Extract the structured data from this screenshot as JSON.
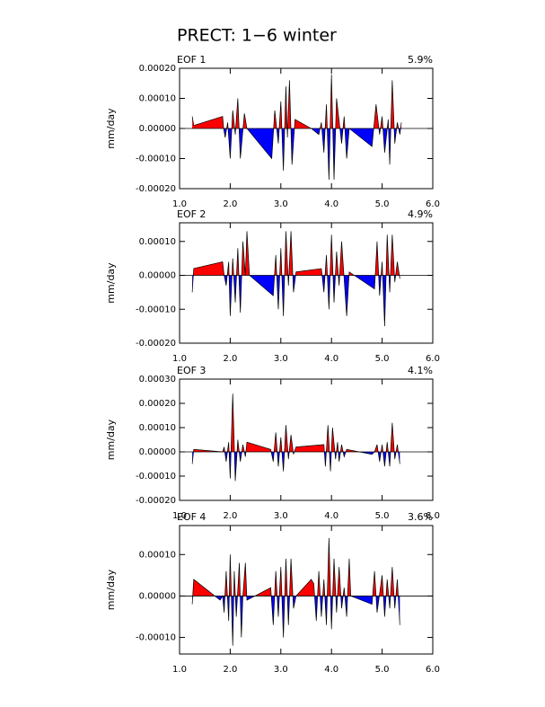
{
  "title": "PRECT: 1−6 winter",
  "chart_data": [
    {
      "type": "area",
      "subtitle": "EOF 1",
      "annotation": "5.9%",
      "ylabel": "mm/day",
      "color": "#000000",
      "above_color": "#ff0000",
      "below_color": "#0000ff",
      "xlim": [
        1,
        6
      ],
      "xticks": [
        {
          "value": 1,
          "label": "1.0"
        },
        {
          "value": 2,
          "label": "2.0"
        },
        {
          "value": 3,
          "label": "3.0"
        },
        {
          "value": 4,
          "label": "4.0"
        },
        {
          "value": 5,
          "label": "5.0"
        },
        {
          "value": 6,
          "label": "6.0"
        }
      ],
      "ylim": [
        -0.0002,
        0.0002
      ],
      "yticks": [
        {
          "value": -0.0002,
          "label": "-0.00020"
        },
        {
          "value": -0.0001,
          "label": "-0.00010"
        },
        {
          "value": 0,
          "label": "0.00000"
        },
        {
          "value": 0.0001,
          "label": "0.00010"
        },
        {
          "value": 0.0002,
          "label": "0.00020"
        }
      ],
      "x": [
        1.25,
        1.28,
        1.85,
        1.87,
        1.9,
        1.95,
        2.0,
        2.05,
        2.1,
        2.15,
        2.2,
        2.28,
        2.33,
        2.82,
        2.88,
        2.95,
        3.0,
        3.05,
        3.1,
        3.13,
        3.17,
        3.22,
        3.28,
        3.6,
        3.75,
        3.8,
        3.85,
        3.9,
        3.95,
        4.0,
        4.05,
        4.1,
        4.2,
        4.25,
        4.3,
        4.35,
        4.8,
        4.88,
        4.95,
        5.0,
        5.05,
        5.12,
        5.15,
        5.2,
        5.25,
        5.3,
        5.35,
        5.38
      ],
      "values": [
        4e-05,
        1e-05,
        4e-05,
        0,
        -3e-05,
        2e-05,
        -0.0001,
        6e-05,
        -2e-05,
        0.0001,
        -0.0001,
        5e-05,
        0,
        -0.0001,
        6e-05,
        -5e-05,
        9e-05,
        -0.00014,
        0.00014,
        -3e-05,
        0.00016,
        -0.00012,
        3e-05,
        0,
        -2e-05,
        2e-05,
        -8e-05,
        8e-05,
        -0.00017,
        0.00018,
        -0.00017,
        0.0001,
        -5e-05,
        4e-05,
        -0.0001,
        0,
        -6e-05,
        8e-05,
        -2e-05,
        4e-05,
        -8e-05,
        3e-05,
        -0.00012,
        0.00016,
        -5e-05,
        2e-05,
        -2e-05,
        2e-05
      ]
    },
    {
      "type": "area",
      "subtitle": "EOF 2",
      "annotation": "4.9%",
      "ylabel": "mm/day",
      "color": "#000000",
      "above_color": "#ff0000",
      "below_color": "#0000ff",
      "xlim": [
        1,
        6
      ],
      "xticks": [
        {
          "value": 1,
          "label": "1.0"
        },
        {
          "value": 2,
          "label": "2.0"
        },
        {
          "value": 3,
          "label": "3.0"
        },
        {
          "value": 4,
          "label": "4.0"
        },
        {
          "value": 5,
          "label": "5.0"
        },
        {
          "value": 6,
          "label": "6.0"
        }
      ],
      "ylim": [
        -0.0002,
        0.000155
      ],
      "yticks": [
        {
          "value": -0.0002,
          "label": "-0.00020"
        },
        {
          "value": -0.0001,
          "label": "-0.00010"
        },
        {
          "value": 0,
          "label": "0.00000"
        },
        {
          "value": 0.0001,
          "label": "0.00010"
        }
      ],
      "x": [
        1.25,
        1.28,
        1.85,
        1.88,
        1.92,
        1.97,
        2.0,
        2.05,
        2.1,
        2.15,
        2.2,
        2.25,
        2.3,
        2.33,
        2.38,
        2.85,
        2.9,
        2.95,
        3.0,
        3.05,
        3.1,
        3.15,
        3.2,
        3.25,
        3.3,
        3.8,
        3.85,
        3.9,
        3.95,
        4.0,
        4.05,
        4.1,
        4.15,
        4.2,
        4.3,
        4.35,
        4.85,
        4.9,
        4.95,
        5.0,
        5.05,
        5.1,
        5.15,
        5.2,
        5.25,
        5.3,
        5.35
      ],
      "values": [
        -5e-05,
        2e-05,
        4e-05,
        0,
        -3e-05,
        4e-05,
        -0.00012,
        5e-05,
        -8e-05,
        8e-05,
        -0.00011,
        0.0001,
        0,
        0.00013,
        0,
        -6e-05,
        6e-05,
        -0.0001,
        8e-05,
        -0.00012,
        0.00013,
        -3e-05,
        0.00013,
        -5e-05,
        1e-05,
        2e-05,
        -5e-05,
        6e-05,
        -0.0001,
        0.00012,
        -8e-05,
        7e-05,
        -3e-05,
        0.0001,
        -0.00012,
        1e-05,
        -4e-05,
        0.0001,
        -6e-05,
        4e-05,
        -0.00015,
        0.00012,
        -5e-05,
        0.00012,
        -2e-05,
        4e-05,
        -1e-05
      ]
    },
    {
      "type": "area",
      "subtitle": "EOF 3",
      "annotation": "4.1%",
      "ylabel": "mm/day",
      "color": "#000000",
      "above_color": "#ff0000",
      "below_color": "#0000ff",
      "xlim": [
        1,
        6
      ],
      "xticks": [
        {
          "value": 1,
          "label": "1.0"
        },
        {
          "value": 2,
          "label": "2.0"
        },
        {
          "value": 3,
          "label": "3.0"
        },
        {
          "value": 4,
          "label": "4.0"
        },
        {
          "value": 5,
          "label": "5.0"
        },
        {
          "value": 6,
          "label": "6.0"
        }
      ],
      "ylim": [
        -0.0002,
        0.0003
      ],
      "yticks": [
        {
          "value": -0.0002,
          "label": "-0.00020"
        },
        {
          "value": -0.0001,
          "label": "-0.00010"
        },
        {
          "value": 0,
          "label": "0.00000"
        },
        {
          "value": 0.0001,
          "label": "0.00010"
        },
        {
          "value": 0.0002,
          "label": "0.00020"
        },
        {
          "value": 0.0003,
          "label": "0.00030"
        }
      ],
      "x": [
        1.25,
        1.28,
        1.85,
        1.88,
        1.92,
        1.97,
        2.0,
        2.05,
        2.1,
        2.15,
        2.2,
        2.25,
        2.3,
        2.33,
        2.8,
        2.85,
        2.9,
        2.95,
        3.0,
        3.05,
        3.1,
        3.15,
        3.2,
        3.25,
        3.3,
        3.85,
        3.88,
        3.93,
        3.98,
        4.02,
        4.08,
        4.12,
        4.15,
        4.2,
        4.25,
        4.3,
        4.8,
        4.85,
        4.9,
        4.95,
        5.0,
        5.05,
        5.1,
        5.15,
        5.2,
        5.25,
        5.3,
        5.35
      ],
      "values": [
        -5e-05,
        1e-05,
        0,
        2e-05,
        -4e-05,
        4e-05,
        -0.00011,
        0.00024,
        -0.00012,
        5e-05,
        -4e-05,
        3e-05,
        -2e-05,
        4e-05,
        1e-05,
        -4e-05,
        8e-05,
        -6e-05,
        6e-05,
        -8e-05,
        0.00011,
        -3e-05,
        7e-05,
        -1e-05,
        2e-05,
        3e-05,
        -6e-05,
        0.00011,
        -8e-05,
        0.0001,
        -3e-05,
        4e-05,
        -4e-05,
        3e-05,
        -2e-05,
        1e-05,
        -1e-05,
        0,
        3e-05,
        -4e-05,
        3e-05,
        -6e-05,
        4e-05,
        -6e-05,
        0.00012,
        -3e-05,
        3e-05,
        -5e-05
      ]
    },
    {
      "type": "area",
      "subtitle": "EOF 4",
      "annotation": "3.6%",
      "ylabel": "mm/day",
      "color": "#000000",
      "above_color": "#ff0000",
      "below_color": "#0000ff",
      "xlim": [
        1,
        6
      ],
      "xticks": [
        {
          "value": 1,
          "label": "1.0"
        },
        {
          "value": 2,
          "label": "2.0"
        },
        {
          "value": 3,
          "label": "3.0"
        },
        {
          "value": 4,
          "label": "4.0"
        },
        {
          "value": 5,
          "label": "5.0"
        },
        {
          "value": 6,
          "label": "6.0"
        }
      ],
      "ylim": [
        -0.00014,
        0.00017
      ],
      "yticks": [
        {
          "value": -0.0001,
          "label": "-0.00010"
        },
        {
          "value": 0,
          "label": "0.00000"
        },
        {
          "value": 0.0001,
          "label": "0.00010"
        }
      ],
      "x": [
        1.25,
        1.28,
        1.8,
        1.85,
        1.88,
        1.92,
        1.97,
        2.0,
        2.05,
        2.08,
        2.12,
        2.18,
        2.22,
        2.25,
        2.3,
        2.33,
        2.8,
        2.85,
        2.9,
        2.95,
        3.0,
        3.05,
        3.1,
        3.15,
        3.2,
        3.25,
        3.3,
        3.6,
        3.65,
        3.7,
        3.75,
        3.8,
        3.85,
        3.9,
        3.95,
        4.0,
        4.05,
        4.1,
        4.15,
        4.2,
        4.25,
        4.3,
        4.35,
        4.38,
        4.8,
        4.85,
        4.9,
        5.0,
        5.05,
        5.1,
        5.15,
        5.2,
        5.25,
        5.3,
        5.35
      ],
      "values": [
        -2e-05,
        4e-05,
        -1e-05,
        0,
        -4e-05,
        6e-05,
        -6e-05,
        0.0001,
        -0.00012,
        6e-05,
        -5e-05,
        8e-05,
        -0.0001,
        0,
        8e-05,
        -1e-05,
        2e-05,
        -7e-05,
        6e-05,
        -5e-05,
        7e-05,
        -0.0001,
        9e-05,
        -7e-05,
        9e-05,
        -3e-05,
        0,
        4e-05,
        3e-05,
        -6e-05,
        6e-05,
        -5e-05,
        4e-05,
        -7e-05,
        0.00014,
        -8e-05,
        9e-05,
        -4e-05,
        7e-05,
        -3e-05,
        2e-05,
        -5e-05,
        9e-05,
        0,
        -2e-05,
        6e-05,
        -4e-05,
        5e-05,
        -5e-05,
        4e-05,
        -3e-05,
        7e-05,
        -3e-05,
        4e-05,
        -7e-05
      ]
    }
  ]
}
